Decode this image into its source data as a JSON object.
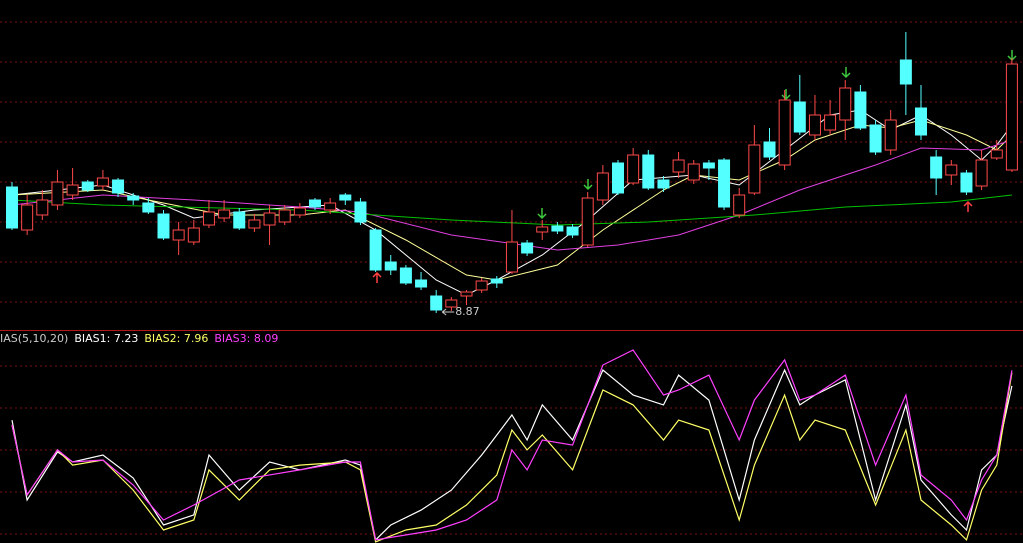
{
  "chart_data": [
    {
      "type": "candlestick",
      "ylim": [
        8.7,
        12.0
      ],
      "up_color": "#ff4a4a",
      "down_color": "#54ffff",
      "open": [
        10.13,
        9.7,
        9.85,
        9.95,
        10.05,
        10.18,
        10.14,
        10.2,
        10.04,
        9.97,
        9.86,
        9.6,
        9.58,
        9.75,
        9.82,
        9.88,
        9.72,
        9.75,
        9.78,
        9.85,
        10.0,
        9.9,
        10.05,
        9.98,
        9.7,
        9.38,
        9.32,
        9.2,
        9.04,
        8.93,
        9.04,
        9.1,
        9.21,
        9.28,
        9.57,
        9.68,
        9.74,
        9.73,
        9.55,
        10.0,
        10.37,
        10.17,
        10.45,
        10.2,
        10.28,
        10.2,
        10.37,
        10.4,
        9.85,
        10.07,
        10.58,
        10.35,
        10.98,
        10.65,
        10.7,
        10.8,
        11.08,
        10.75,
        10.5,
        11.4,
        10.92,
        10.43,
        10.25,
        10.27,
        10.14,
        10.42,
        10.3
      ],
      "high": [
        10.18,
        10.05,
        10.1,
        10.3,
        10.32,
        10.2,
        10.3,
        10.22,
        10.07,
        10.02,
        9.9,
        9.78,
        9.8,
        10.0,
        10.0,
        9.92,
        9.86,
        9.95,
        9.95,
        9.97,
        10.02,
        10.02,
        10.07,
        10.02,
        9.72,
        9.45,
        9.35,
        9.28,
        9.1,
        9.03,
        9.1,
        9.22,
        9.24,
        9.9,
        9.6,
        9.8,
        9.78,
        9.76,
        10.08,
        10.35,
        10.4,
        10.52,
        10.5,
        10.24,
        10.48,
        10.4,
        10.4,
        10.42,
        10.12,
        10.75,
        10.72,
        11.1,
        11.25,
        11.05,
        11.0,
        11.2,
        11.15,
        10.8,
        10.9,
        11.68,
        11.15,
        10.5,
        10.4,
        10.3,
        10.5,
        10.6,
        11.42
      ],
      "low": [
        9.7,
        9.65,
        9.8,
        9.9,
        10.0,
        10.08,
        10.1,
        10.03,
        9.95,
        9.86,
        9.6,
        9.45,
        9.55,
        9.72,
        9.78,
        9.7,
        9.68,
        9.55,
        9.75,
        9.82,
        9.9,
        9.86,
        9.95,
        9.75,
        9.28,
        9.25,
        9.15,
        9.1,
        8.87,
        8.89,
        8.95,
        9.07,
        9.12,
        9.26,
        9.44,
        9.6,
        9.66,
        9.62,
        9.53,
        9.95,
        10.05,
        10.15,
        10.1,
        10.08,
        10.22,
        10.16,
        10.2,
        9.9,
        9.82,
        10.05,
        10.4,
        10.3,
        10.65,
        10.6,
        10.65,
        10.6,
        10.7,
        10.45,
        10.45,
        10.85,
        10.6,
        10.05,
        10.15,
        10.05,
        10.1,
        10.4,
        10.28
      ],
      "close": [
        9.72,
        9.95,
        10.0,
        10.18,
        10.15,
        10.1,
        10.22,
        10.07,
        10.0,
        9.88,
        9.62,
        9.7,
        9.72,
        9.88,
        9.9,
        9.72,
        9.8,
        9.87,
        9.9,
        9.92,
        9.93,
        9.97,
        10.0,
        9.78,
        9.3,
        9.3,
        9.17,
        9.13,
        8.9,
        9.0,
        9.08,
        9.19,
        9.17,
        9.58,
        9.47,
        9.73,
        9.69,
        9.65,
        10.02,
        10.27,
        10.07,
        10.45,
        10.12,
        10.12,
        10.4,
        10.36,
        10.32,
        9.93,
        10.05,
        10.55,
        10.43,
        11.0,
        10.68,
        10.85,
        10.85,
        11.12,
        10.72,
        10.48,
        10.8,
        11.16,
        10.65,
        10.22,
        10.35,
        10.08,
        10.4,
        10.5,
        11.36
      ],
      "annotation": {
        "text": "8.87"
      },
      "series": [
        {
          "color": "#ffffff",
          "x": [
            0,
            6,
            10,
            12,
            16,
            21,
            24,
            28,
            30,
            32,
            35,
            38,
            41,
            45,
            48,
            51,
            54,
            56,
            58,
            60,
            62,
            64,
            65,
            66
          ],
          "values": [
            10.05,
            10.15,
            9.95,
            9.82,
            9.9,
            9.95,
            9.7,
            9.2,
            9.05,
            9.2,
            9.45,
            9.8,
            10.2,
            10.25,
            10.15,
            10.5,
            10.85,
            10.9,
            10.7,
            10.85,
            10.65,
            10.4,
            10.55,
            10.75
          ]
        },
        {
          "color": "#ffff99",
          "x": [
            0,
            6,
            9,
            14,
            19,
            22,
            26,
            30,
            32,
            36,
            39,
            43,
            45,
            48,
            51,
            53,
            56,
            58,
            60,
            63,
            65,
            66
          ],
          "values": [
            10.05,
            10.1,
            10.0,
            9.85,
            9.85,
            9.9,
            9.6,
            9.25,
            9.2,
            9.35,
            9.7,
            10.1,
            10.25,
            10.2,
            10.4,
            10.6,
            10.75,
            10.72,
            10.8,
            10.65,
            10.5,
            10.65
          ]
        },
        {
          "color": "#e040e0",
          "x": [
            0,
            6,
            12,
            19,
            23,
            29,
            36,
            40,
            44,
            48,
            52,
            57,
            60,
            64,
            66
          ],
          "values": [
            9.95,
            10.05,
            10.0,
            9.93,
            9.88,
            9.65,
            9.5,
            9.55,
            9.65,
            9.85,
            10.1,
            10.35,
            10.52,
            10.5,
            10.6
          ]
        },
        {
          "color": "#00c000",
          "x": [
            0,
            6,
            19,
            29,
            36,
            42,
            49,
            55,
            62,
            66
          ],
          "values": [
            10.0,
            9.95,
            9.9,
            9.8,
            9.75,
            9.78,
            9.85,
            9.93,
            9.98,
            10.05
          ]
        }
      ]
    },
    {
      "type": "line",
      "indicator_label": "IAS(5,10,20)",
      "ylim": [
        -1.5,
        9.5
      ],
      "series": [
        {
          "name": "BIAS1: 7.23",
          "color": "#ffffff",
          "x": [
            0,
            1,
            3,
            4,
            6,
            8,
            10,
            12,
            13,
            15,
            17,
            19,
            22,
            23,
            24,
            25,
            27,
            29,
            31,
            33,
            34,
            35,
            37,
            39,
            41,
            43,
            44,
            46,
            48,
            49,
            51,
            52,
            53,
            55,
            57,
            59,
            60,
            62,
            63,
            64,
            65,
            66
          ],
          "values": [
            5.33,
            0.89,
            3.56,
            3.0,
            3.39,
            2.11,
            -0.5,
            0.06,
            3.39,
            1.44,
            3.0,
            2.56,
            3.11,
            2.83,
            -1.33,
            -0.5,
            0.33,
            1.44,
            3.39,
            5.61,
            4.22,
            6.17,
            4.22,
            8.11,
            6.72,
            6.17,
            7.83,
            6.44,
            0.89,
            4.22,
            8.11,
            6.17,
            6.72,
            7.56,
            0.89,
            6.17,
            2.0,
            0.06,
            -0.78,
            2.56,
            3.39,
            7.23
          ]
        },
        {
          "name": "BIAS2: 7.96",
          "color": "#ffff66",
          "x": [
            0,
            1,
            3,
            4,
            6,
            8,
            10,
            12,
            13,
            15,
            17,
            19,
            22,
            23,
            24,
            26,
            28,
            30,
            32,
            33,
            34,
            35,
            37,
            39,
            41,
            43,
            44,
            46,
            48,
            49,
            51,
            52,
            53,
            55,
            57,
            59,
            60,
            62,
            63,
            64,
            65,
            66
          ],
          "values": [
            5.06,
            1.17,
            3.67,
            2.83,
            3.11,
            1.44,
            -0.78,
            -0.22,
            2.56,
            0.89,
            2.56,
            2.83,
            3.0,
            2.56,
            -1.44,
            -0.78,
            -0.5,
            0.61,
            2.28,
            4.78,
            3.67,
            4.5,
            2.56,
            7.0,
            6.17,
            4.22,
            5.33,
            4.78,
            -0.22,
            2.83,
            6.72,
            4.22,
            5.33,
            4.78,
            0.61,
            4.78,
            0.89,
            -0.5,
            -1.33,
            1.44,
            2.83,
            7.96
          ]
        },
        {
          "name": "BIAS3: 8.09",
          "color": "#ff40ff",
          "x": [
            0,
            1,
            3,
            4,
            6,
            8,
            10,
            12,
            15,
            19,
            22,
            23,
            24,
            28,
            30,
            32,
            33,
            34,
            35,
            37,
            39,
            41,
            43,
            44,
            46,
            48,
            49,
            51,
            52,
            53,
            55,
            57,
            59,
            60,
            62,
            63,
            64,
            65,
            66
          ],
          "values": [
            5.06,
            1.17,
            3.67,
            3.0,
            3.11,
            1.72,
            -0.22,
            0.61,
            2.0,
            2.56,
            3.0,
            3.0,
            -1.33,
            -0.78,
            -0.22,
            0.89,
            3.67,
            2.56,
            4.22,
            3.94,
            8.39,
            9.22,
            6.72,
            7.0,
            7.83,
            4.22,
            6.44,
            8.67,
            6.44,
            6.72,
            7.83,
            2.83,
            6.72,
            2.28,
            0.89,
            -0.22,
            2.0,
            3.39,
            8.09
          ]
        }
      ]
    }
  ]
}
